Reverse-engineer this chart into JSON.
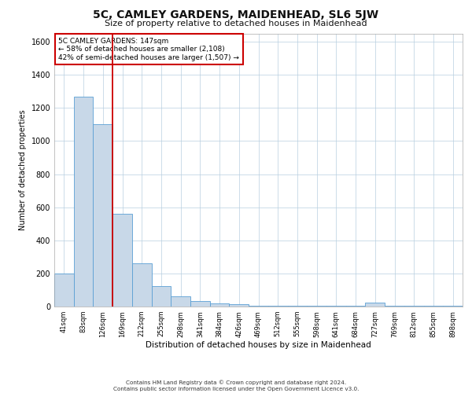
{
  "title1": "5C, CAMLEY GARDENS, MAIDENHEAD, SL6 5JW",
  "title2": "Size of property relative to detached houses in Maidenhead",
  "xlabel": "Distribution of detached houses by size in Maidenhead",
  "ylabel": "Number of detached properties",
  "footer1": "Contains HM Land Registry data © Crown copyright and database right 2024.",
  "footer2": "Contains public sector information licensed under the Open Government Licence v3.0.",
  "bar_labels": [
    "41sqm",
    "83sqm",
    "126sqm",
    "169sqm",
    "212sqm",
    "255sqm",
    "298sqm",
    "341sqm",
    "384sqm",
    "426sqm",
    "469sqm",
    "512sqm",
    "555sqm",
    "598sqm",
    "641sqm",
    "684sqm",
    "727sqm",
    "769sqm",
    "812sqm",
    "855sqm",
    "898sqm"
  ],
  "bar_values": [
    200,
    1270,
    1100,
    560,
    260,
    125,
    60,
    35,
    20,
    15,
    5,
    5,
    3,
    3,
    3,
    3,
    25,
    3,
    3,
    3,
    3
  ],
  "bar_color": "#c8d8e8",
  "bar_edgecolor": "#5a9fd4",
  "annotation_line1": "5C CAMLEY GARDENS: 147sqm",
  "annotation_line2": "← 58% of detached houses are smaller (2,108)",
  "annotation_line3": "42% of semi-detached houses are larger (1,507) →",
  "vline_x": 2.5,
  "vline_color": "#cc0000",
  "background_color": "#ffffff",
  "grid_color": "#b8cfe0",
  "ylim": [
    0,
    1650
  ],
  "yticks": [
    0,
    200,
    400,
    600,
    800,
    1000,
    1200,
    1400,
    1600
  ]
}
